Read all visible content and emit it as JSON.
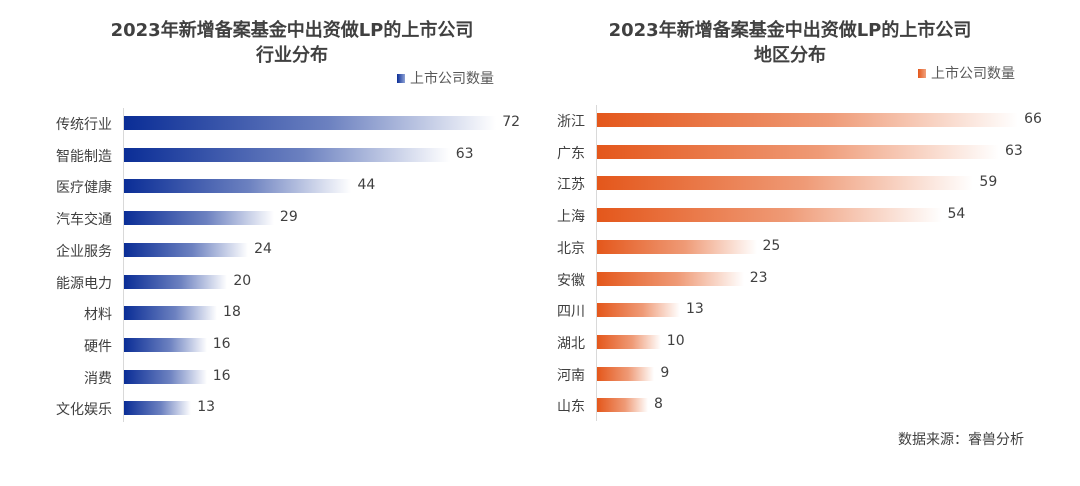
{
  "chart_data": [
    {
      "type": "bar",
      "orientation": "horizontal",
      "title": "2023年新增备案基金中出资做LP的上市公司\n行业分布",
      "legend": "上市公司数量",
      "legend_position": "top-right",
      "color": "#0a2d96",
      "categories": [
        "传统行业",
        "智能制造",
        "医疗健康",
        "汽车交通",
        "企业服务",
        "能源电力",
        "材料",
        "硬件",
        "消费",
        "文化娱乐"
      ],
      "values": [
        72,
        63,
        44,
        29,
        24,
        20,
        18,
        16,
        16,
        13
      ]
    },
    {
      "type": "bar",
      "orientation": "horizontal",
      "title": "2023年新增备案基金中出资做LP的上市公司\n地区分布",
      "legend": "上市公司数量",
      "legend_position": "top-right",
      "color": "#e4571b",
      "categories": [
        "浙江",
        "广东",
        "江苏",
        "上海",
        "北京",
        "安徽",
        "四川",
        "湖北",
        "河南",
        "山东"
      ],
      "values": [
        66,
        63,
        59,
        54,
        25,
        23,
        13,
        10,
        9,
        8
      ]
    }
  ],
  "source": "数据来源：睿兽分析"
}
